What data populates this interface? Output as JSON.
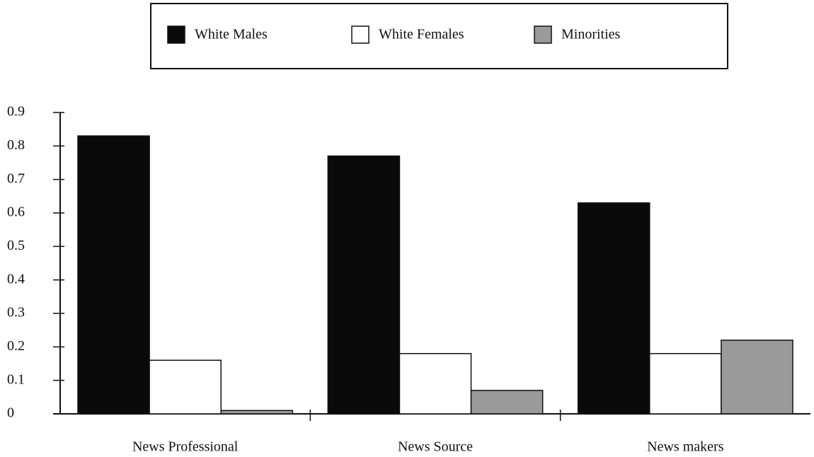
{
  "chart_data": {
    "type": "bar",
    "categories": [
      "News Professional",
      "News Source",
      "News makers"
    ],
    "series": [
      {
        "name": "White Males",
        "color": "#0a0a0a",
        "values": [
          0.83,
          0.77,
          0.63
        ]
      },
      {
        "name": "White Females",
        "color": "#ffffff",
        "values": [
          0.16,
          0.18,
          0.18
        ]
      },
      {
        "name": "Minorities",
        "color": "#9a9a9a",
        "values": [
          0.01,
          0.07,
          0.22
        ]
      }
    ],
    "ylim": [
      0,
      0.9
    ],
    "yticks": [
      0,
      0.1,
      0.2,
      0.3,
      0.4,
      0.5,
      0.6,
      0.7,
      0.8,
      0.9
    ],
    "legend": "top"
  }
}
